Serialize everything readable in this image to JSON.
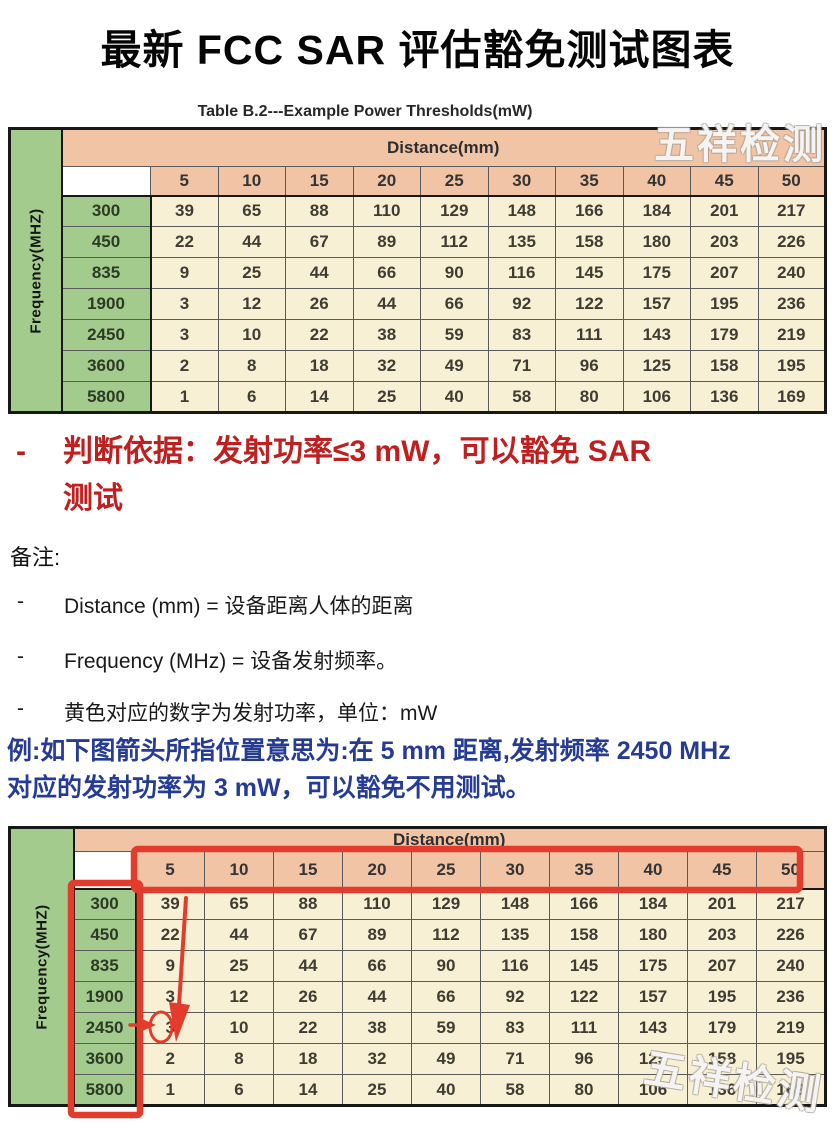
{
  "title": "最新 FCC SAR 评估豁免测试图表",
  "watermark": "五祥检测",
  "colors": {
    "header_green": "#a4cb8e",
    "header_salmon": "#f2c4a6",
    "cell_cream": "#f8f0d4",
    "judgment_red": "#c01f1f",
    "example_blue": "#263c94",
    "annotation_red": "#e33b2c"
  },
  "table1": {
    "caption": "Table B.2---Example Power Thresholds(mW)",
    "distance_header": "Distance(mm)",
    "frequency_header": "Frequency(MHZ)",
    "distances": [
      "5",
      "10",
      "15",
      "20",
      "25",
      "30",
      "35",
      "40",
      "45",
      "50"
    ],
    "rows": [
      {
        "frequency": "300",
        "values": [
          "39",
          "65",
          "88",
          "110",
          "129",
          "148",
          "166",
          "184",
          "201",
          "217"
        ]
      },
      {
        "frequency": "450",
        "values": [
          "22",
          "44",
          "67",
          "89",
          "112",
          "135",
          "158",
          "180",
          "203",
          "226"
        ]
      },
      {
        "frequency": "835",
        "values": [
          "9",
          "25",
          "44",
          "66",
          "90",
          "116",
          "145",
          "175",
          "207",
          "240"
        ]
      },
      {
        "frequency": "1900",
        "values": [
          "3",
          "12",
          "26",
          "44",
          "66",
          "92",
          "122",
          "157",
          "195",
          "236"
        ]
      },
      {
        "frequency": "2450",
        "values": [
          "3",
          "10",
          "22",
          "38",
          "59",
          "83",
          "111",
          "143",
          "179",
          "219"
        ]
      },
      {
        "frequency": "3600",
        "values": [
          "2",
          "8",
          "18",
          "32",
          "49",
          "71",
          "96",
          "125",
          "158",
          "195"
        ]
      },
      {
        "frequency": "5800",
        "values": [
          "1",
          "6",
          "14",
          "25",
          "40",
          "58",
          "80",
          "106",
          "136",
          "169"
        ]
      }
    ]
  },
  "judgment": {
    "bullet": "-",
    "lines": [
      "判断依据：发射功率≤3 mW，可以豁免 SAR",
      "测试"
    ]
  },
  "notes": {
    "heading": "备注:",
    "bullet": "-",
    "items": [
      "Distance (mm) =  设备距离人体的距离",
      "Frequency (MHz) =  设备发射频率。",
      "黄色对应的数字为发射功率，单位：mW"
    ]
  },
  "example": {
    "lines": [
      "例:如下图箭头所指位置意思为:在 5 mm 距离,发射频率 2450 MHz",
      "对应的发射功率为 3 mW，可以豁免不用测试。"
    ]
  },
  "table2": {
    "distance_header": "Distance(mm)",
    "frequency_header": "Frequency(MHZ)",
    "distances": [
      "5",
      "10",
      "15",
      "20",
      "25",
      "30",
      "35",
      "40",
      "45",
      "50"
    ],
    "rows": [
      {
        "frequency": "300",
        "values": [
          "39",
          "65",
          "88",
          "110",
          "129",
          "148",
          "166",
          "184",
          "201",
          "217"
        ]
      },
      {
        "frequency": "450",
        "values": [
          "22",
          "44",
          "67",
          "89",
          "112",
          "135",
          "158",
          "180",
          "203",
          "226"
        ]
      },
      {
        "frequency": "835",
        "values": [
          "9",
          "25",
          "44",
          "66",
          "90",
          "116",
          "145",
          "175",
          "207",
          "240"
        ]
      },
      {
        "frequency": "1900",
        "values": [
          "3",
          "12",
          "26",
          "44",
          "66",
          "92",
          "122",
          "157",
          "195",
          "236"
        ]
      },
      {
        "frequency": "2450",
        "values": [
          "3",
          "10",
          "22",
          "38",
          "59",
          "83",
          "111",
          "143",
          "179",
          "219"
        ]
      },
      {
        "frequency": "3600",
        "values": [
          "2",
          "8",
          "18",
          "32",
          "49",
          "71",
          "96",
          "125",
          "158",
          "195"
        ]
      },
      {
        "frequency": "5800",
        "values": [
          "1",
          "6",
          "14",
          "25",
          "40",
          "58",
          "80",
          "106",
          "136",
          "169"
        ]
      }
    ]
  }
}
